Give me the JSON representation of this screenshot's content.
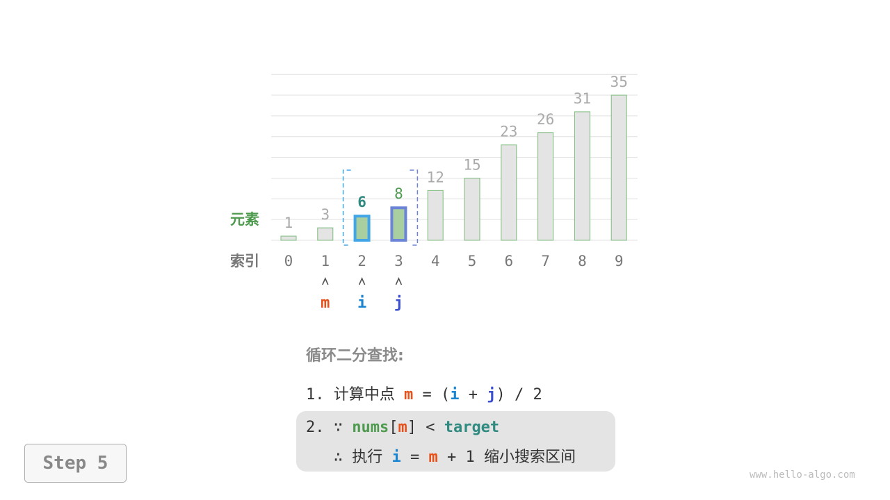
{
  "chart_data": {
    "type": "bar",
    "row_labels": {
      "values": "元素",
      "indices": "索引"
    },
    "categories": [
      "0",
      "1",
      "2",
      "3",
      "4",
      "5",
      "6",
      "7",
      "8",
      "9"
    ],
    "values": [
      1,
      3,
      6,
      8,
      12,
      15,
      23,
      26,
      31,
      35
    ],
    "highlight": {
      "i": 2,
      "j": 3
    },
    "pointers": [
      {
        "label": "m",
        "index": 1
      },
      {
        "label": "i",
        "index": 2
      },
      {
        "label": "j",
        "index": 3
      }
    ],
    "grid": true
  },
  "colors": {
    "m": "#e8501a",
    "i": "#1a84d0",
    "j": "#3b4fd0",
    "nums": "#4e9a4e",
    "target": "#2f8a80"
  },
  "text": {
    "title": "循环二分查找:",
    "l1_prefix": "1. 计算中点 ",
    "m": "m",
    "eq": " = (",
    "i": "i",
    "plus": " + ",
    "j": "j",
    "l1_suffix": ") / 2",
    "l2_prefix": "2. ∵ ",
    "nums": "nums",
    "lb": "[",
    "rb": "] < ",
    "target": "target",
    "l3_prefix": "   ∴ 执行 ",
    "eq2": " = ",
    "plus1": " + 1 缩小搜索区间"
  },
  "step_label": "Step 5",
  "watermark": "www.hello-algo.com"
}
